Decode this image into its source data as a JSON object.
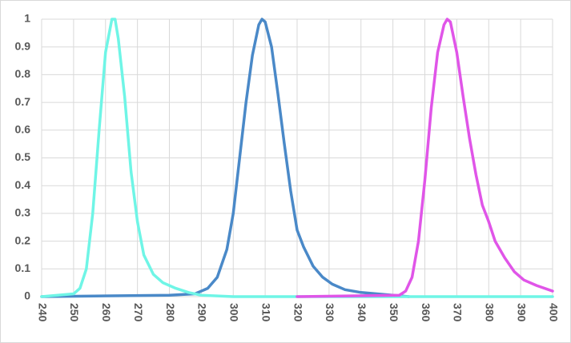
{
  "chart_data": {
    "type": "line",
    "grid": true,
    "xlim": [
      240,
      400
    ],
    "xticks": [
      240,
      250,
      260,
      270,
      280,
      290,
      300,
      310,
      320,
      330,
      340,
      350,
      360,
      370,
      380,
      390,
      400
    ],
    "ylim": [
      0,
      1
    ],
    "yticks": [
      0,
      0.1,
      0.2,
      0.3,
      0.4,
      0.5,
      0.6,
      0.7,
      0.8,
      0.9,
      1
    ],
    "series": [
      {
        "color": "#4a89c8",
        "x": [
          240,
          280,
          288,
          292,
          295,
          298,
          300,
          302,
          304,
          306,
          308,
          309,
          310,
          312,
          314,
          316,
          318,
          320,
          322,
          325,
          328,
          331,
          335,
          340,
          345,
          350,
          355
        ],
        "values": [
          0,
          0.005,
          0.01,
          0.03,
          0.07,
          0.17,
          0.3,
          0.5,
          0.7,
          0.87,
          0.98,
          1.0,
          0.99,
          0.9,
          0.73,
          0.55,
          0.38,
          0.24,
          0.18,
          0.11,
          0.07,
          0.045,
          0.025,
          0.015,
          0.01,
          0.005,
          0
        ]
      },
      {
        "color": "#6ff5e6",
        "x": [
          240,
          250,
          252,
          254,
          256,
          258,
          260,
          262,
          263,
          264,
          266,
          268,
          270,
          272,
          275,
          278,
          282,
          286,
          290,
          300,
          400
        ],
        "values": [
          0,
          0.01,
          0.03,
          0.1,
          0.3,
          0.6,
          0.88,
          1.0,
          1.0,
          0.93,
          0.72,
          0.45,
          0.27,
          0.15,
          0.08,
          0.05,
          0.03,
          0.015,
          0.005,
          0,
          0
        ]
      },
      {
        "color": "#e055e8",
        "x": [
          320,
          352,
          354,
          356,
          358,
          360,
          362,
          364,
          366,
          367,
          368,
          370,
          372,
          374,
          376,
          378,
          380,
          382,
          385,
          388,
          391,
          395,
          400
        ],
        "values": [
          0,
          0.005,
          0.02,
          0.07,
          0.2,
          0.42,
          0.68,
          0.88,
          0.98,
          1.0,
          0.99,
          0.88,
          0.72,
          0.57,
          0.44,
          0.33,
          0.27,
          0.2,
          0.14,
          0.09,
          0.06,
          0.04,
          0.02
        ]
      }
    ]
  }
}
